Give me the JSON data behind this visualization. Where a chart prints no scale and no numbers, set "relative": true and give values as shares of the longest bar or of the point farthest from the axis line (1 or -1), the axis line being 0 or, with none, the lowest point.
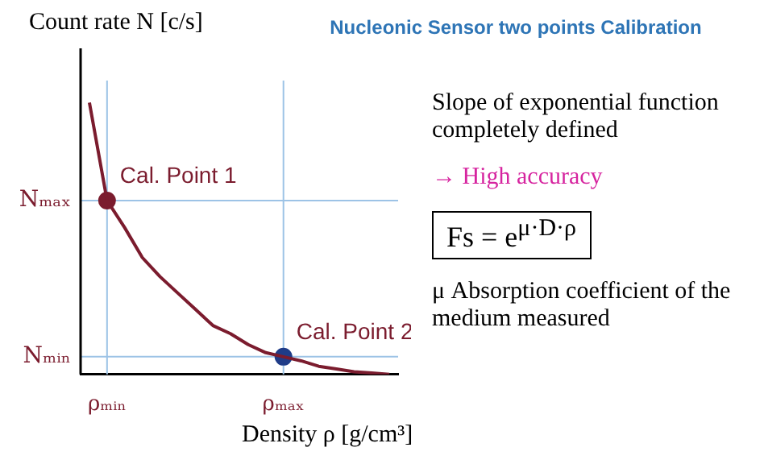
{
  "chart_data": {
    "type": "line",
    "title": "Nucleonic Sensor two points Calibration",
    "xlabel": "Density ρ [g/cm³]",
    "ylabel": "Count rate N [c/s]",
    "relative": true,
    "categories": [
      null,
      "ρₘᵢₙ",
      null,
      null,
      null,
      null,
      null,
      null,
      null,
      null,
      null,
      "ρₘₐₓ",
      null,
      null,
      null,
      null,
      null,
      null
    ],
    "series": [
      {
        "color": "#7b1c2e",
        "values": [
          1,
          0.64,
          0.54,
          0.43,
          0.36,
          0.3,
          0.24,
          0.18,
          0.15,
          0.11,
          0.08,
          0.065,
          0.05,
          0.03,
          0.02,
          0.01,
          0.005,
          0
        ]
      },
      {
        "type": "scatter",
        "x": [
          "ρₘᵢₙ",
          "ρₘₐₓ"
        ],
        "values": [
          0.64,
          0.065
        ],
        "colors": [
          "#7b1c2e",
          "#1f3c88"
        ]
      }
    ],
    "ref_lines": [
      {
        "axis": "y",
        "value": 0.64,
        "label": "Nₘₐₓ",
        "color": "#9dc3e6"
      },
      {
        "axis": "y",
        "value": 0.065,
        "label": "Nₘᵢₙ",
        "color": "#9dc3e6"
      },
      {
        "axis": "x",
        "value": "ρₘᵢₙ",
        "color": "#9dc3e6"
      },
      {
        "axis": "x",
        "value": "ρₘₐₓ",
        "color": "#9dc3e6"
      }
    ],
    "annotations": [
      {
        "text": "Cal. Point 1",
        "x": "ρₘᵢₙ",
        "y": 0.64
      },
      {
        "text": "Cal. Point 2",
        "x": "ρₘₐₓ",
        "y": 0.065
      },
      "Slope of exponential function completely defined",
      "→ High accuracy",
      "Fs = e$^{μ·D·ρ}$",
      "μ Absorption coefficient of the medium measured"
    ],
    "legend": false,
    "grid": false
  }
}
